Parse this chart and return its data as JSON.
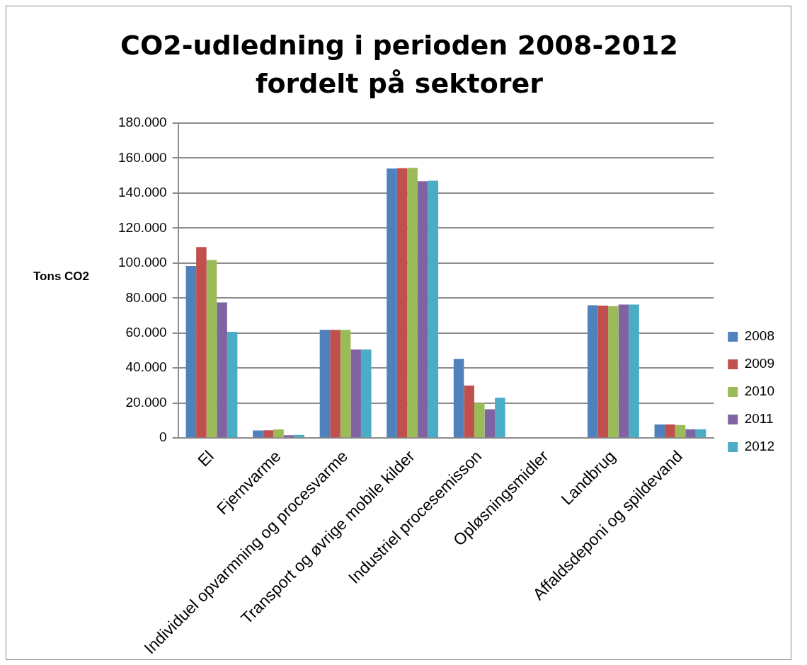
{
  "chart_data": {
    "type": "bar",
    "title": "CO2-udledning i perioden 2008-2012 fordelt på sektorer",
    "ylabel": "Tons CO2",
    "categories": [
      "El",
      "Fjernvarme",
      "Individuel opvarmning og procesvarme",
      "Transport og øvrige mobile kilder",
      "Industriel procesemisson",
      "Opløsningsmidler",
      "Landbrug",
      "Affaldsdeponi og spildevand"
    ],
    "series": [
      {
        "name": "2008",
        "color": "#4f81bd",
        "values": [
          98300,
          4300,
          61800,
          154000,
          45200,
          null,
          75900,
          7700
        ]
      },
      {
        "name": "2009",
        "color": "#c0504d",
        "values": [
          109100,
          4400,
          61800,
          154200,
          30000,
          null,
          75700,
          7700
        ]
      },
      {
        "name": "2010",
        "color": "#9bbb59",
        "values": [
          101800,
          4900,
          61800,
          154400,
          19900,
          null,
          75400,
          7400
        ]
      },
      {
        "name": "2011",
        "color": "#8064a2",
        "values": [
          77500,
          1600,
          50600,
          146700,
          16400,
          null,
          76300,
          5000
        ]
      },
      {
        "name": "2012",
        "color": "#4bacc6",
        "values": [
          60700,
          1800,
          50600,
          147000,
          23000,
          null,
          76300,
          5000
        ]
      }
    ],
    "ylim": [
      0,
      180000
    ],
    "yticks": [
      0,
      {
        "value": 20000,
        "label": "20.000"
      },
      {
        "value": 40000,
        "label": "40.000"
      },
      {
        "value": 60000,
        "label": "60.000"
      },
      {
        "value": 80000,
        "label": "80.000"
      },
      {
        "value": 100000,
        "label": "100.000"
      },
      {
        "value": 120000,
        "label": "120.000"
      },
      {
        "value": 140000,
        "label": "140.000"
      },
      {
        "value": 160000,
        "label": "160.000"
      },
      {
        "value": 180000,
        "label": "180.000"
      }
    ],
    "grid": "y",
    "legend": "right"
  }
}
